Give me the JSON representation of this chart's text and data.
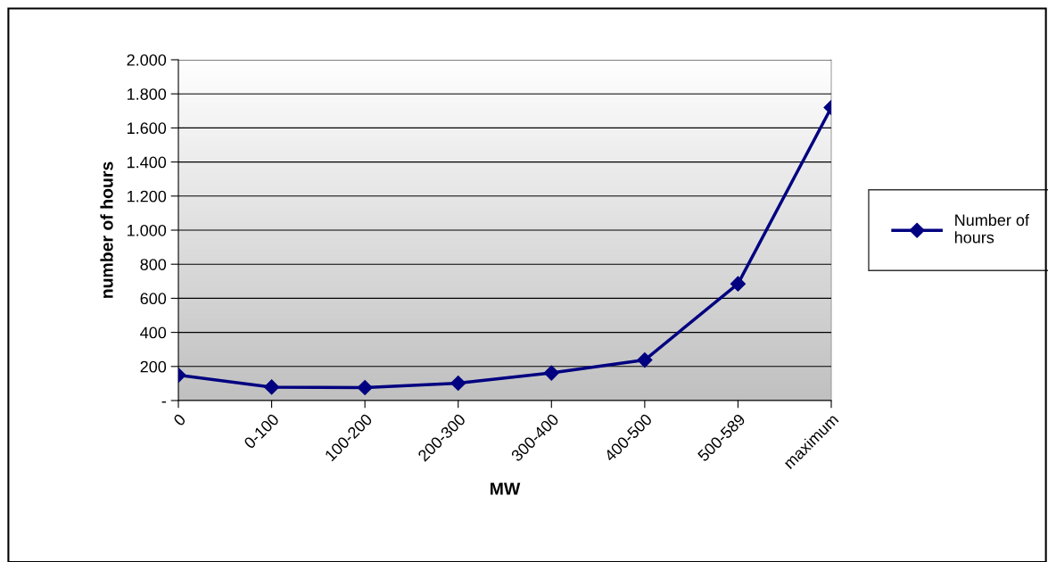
{
  "chart_data": {
    "type": "line",
    "xlabel": "MW",
    "ylabel": "number of hours",
    "categories": [
      "0",
      "0-100",
      "100-200",
      "200-300",
      "300-400",
      "400-500",
      "500-589",
      "maximum"
    ],
    "series": [
      {
        "name": "Number of\nhours",
        "color": "#000080",
        "values": [
          149,
          79,
          76,
          102,
          162,
          238,
          685,
          1720
        ]
      }
    ],
    "ylim": [
      0,
      2000
    ],
    "yticks": [
      {
        "value": 0,
        "label": "-"
      },
      {
        "value": 200,
        "label": "200"
      },
      {
        "value": 400,
        "label": "400"
      },
      {
        "value": 600,
        "label": "600"
      },
      {
        "value": 800,
        "label": "800"
      },
      {
        "value": 1000,
        "label": "1.000"
      },
      {
        "value": 1200,
        "label": "1.200"
      },
      {
        "value": 1400,
        "label": "1.400"
      },
      {
        "value": 1600,
        "label": "1.600"
      },
      {
        "value": 1800,
        "label": "1.800"
      },
      {
        "value": 2000,
        "label": "2.000"
      }
    ],
    "grid": "y",
    "legend": "right",
    "marker": "diamond",
    "line_style": "solid"
  }
}
